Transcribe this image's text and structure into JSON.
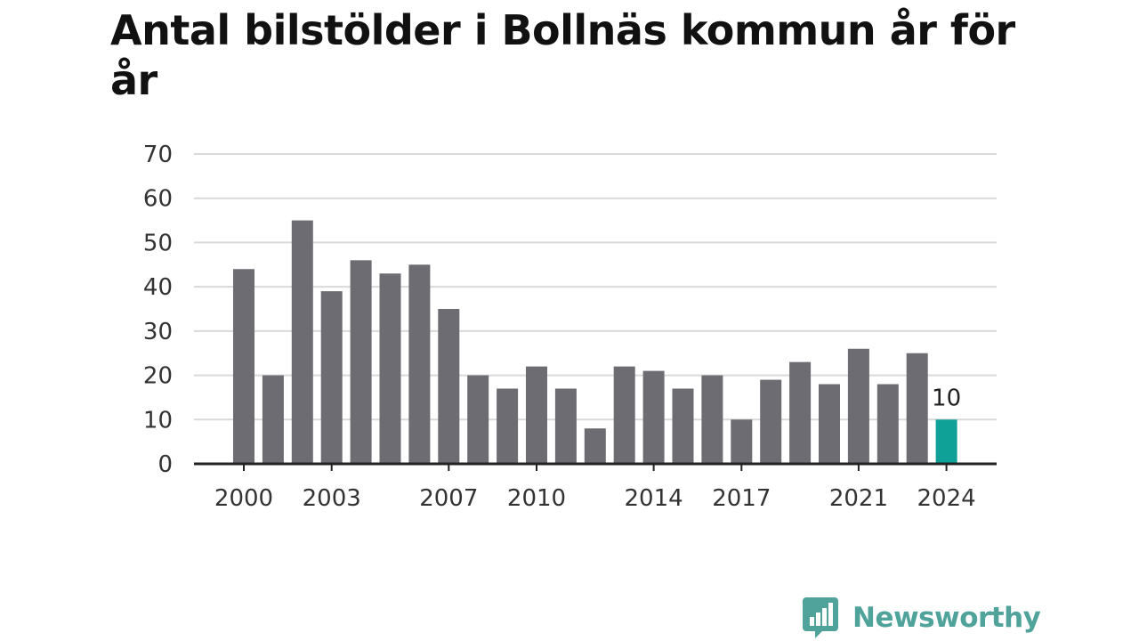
{
  "title": "Antal bilstölder i Bollnäs kommun år för år",
  "brand": {
    "name": "Newsworthy",
    "icon": "newsworthy-logo-icon",
    "color": "#4fa39a"
  },
  "colors": {
    "bar": "#6d6c72",
    "highlight": "#0fa197",
    "grid": "#d9d9d9",
    "axis": "#222222"
  },
  "chart_data": {
    "type": "bar",
    "title": "Antal bilstölder i Bollnäs kommun år för år",
    "xlabel": "",
    "ylabel": "",
    "categories": [
      "2000",
      "2001",
      "2002",
      "2003",
      "2004",
      "2005",
      "2006",
      "2007",
      "2008",
      "2009",
      "2010",
      "2011",
      "2012",
      "2013",
      "2014",
      "2015",
      "2016",
      "2017",
      "2018",
      "2019",
      "2020",
      "2021",
      "2022",
      "2023",
      "2024"
    ],
    "values": [
      44,
      20,
      55,
      39,
      46,
      43,
      45,
      35,
      20,
      17,
      22,
      17,
      8,
      22,
      21,
      17,
      20,
      10,
      19,
      23,
      18,
      26,
      18,
      25,
      10
    ],
    "x_tick_labels": [
      "2000",
      "2003",
      "2007",
      "2010",
      "2014",
      "2017",
      "2021",
      "2024"
    ],
    "ylim": [
      0,
      70
    ],
    "y_ticks": [
      0,
      10,
      20,
      30,
      40,
      50,
      60,
      70
    ],
    "highlight": {
      "category": "2024",
      "label": "10"
    },
    "grid": true,
    "legend": "none"
  }
}
